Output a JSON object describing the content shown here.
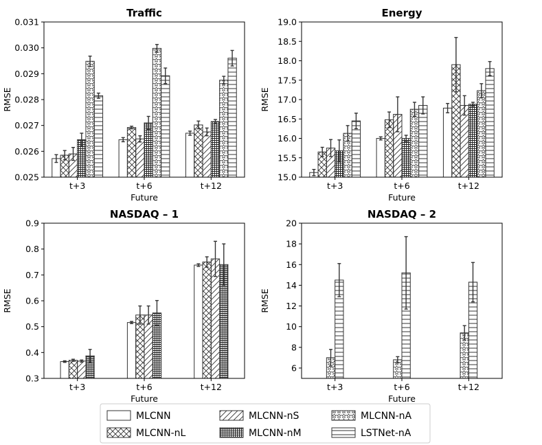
{
  "legend": {
    "entries": [
      "MLCNN",
      "MLCNN-nL",
      "MLCNN-nS",
      "MLCNN-nM",
      "MLCNN-nA",
      "LSTNet-nA"
    ]
  },
  "chart_data": [
    {
      "type": "bar",
      "title": "Traffic",
      "xlabel": "Future",
      "ylabel": "RMSE",
      "categories": [
        "t+3",
        "t+6",
        "t+12"
      ],
      "ylim": [
        0.025,
        0.031
      ],
      "yticks": [
        "0.025",
        "0.026",
        "0.027",
        "0.028",
        "0.029",
        "0.030",
        "0.031"
      ],
      "series": [
        {
          "name": "MLCNN",
          "values": [
            0.02572,
            0.02645,
            0.0267
          ],
          "errors": [
            0.00015,
            8e-05,
            8e-05
          ]
        },
        {
          "name": "MLCNN-nL",
          "values": [
            0.02585,
            0.02692,
            0.02702
          ],
          "errors": [
            0.00018,
            5e-05,
            0.00015
          ]
        },
        {
          "name": "MLCNN-nS",
          "values": [
            0.0259,
            0.02648,
            0.02675
          ],
          "errors": [
            0.00025,
            0.00012,
            0.00015
          ]
        },
        {
          "name": "MLCNN-nM",
          "values": [
            0.02645,
            0.0271,
            0.02715
          ],
          "errors": [
            0.00025,
            0.00025,
            8e-05
          ]
        },
        {
          "name": "MLCNN-nA",
          "values": [
            0.02948,
            0.02998,
            0.02875
          ],
          "errors": [
            0.0002,
            0.00015,
            0.00015
          ]
        },
        {
          "name": "LSTNet-nA",
          "values": [
            0.02815,
            0.02892,
            0.0296
          ],
          "errors": [
            0.0001,
            0.0003,
            0.0003
          ]
        }
      ]
    },
    {
      "type": "bar",
      "title": "Energy",
      "xlabel": "Future",
      "ylabel": "RMSE",
      "categories": [
        "t+3",
        "t+6",
        "t+12"
      ],
      "ylim": [
        15.0,
        19.0
      ],
      "yticks": [
        "15.0",
        "15.5",
        "16.0",
        "16.5",
        "17.0",
        "17.5",
        "18.0",
        "18.5",
        "19.0"
      ],
      "series": [
        {
          "name": "MLCNN",
          "values": [
            15.12,
            16.0,
            16.78
          ],
          "errors": [
            0.08,
            0.04,
            0.12
          ]
        },
        {
          "name": "MLCNN-nL",
          "values": [
            15.65,
            16.48,
            17.9
          ],
          "errors": [
            0.12,
            0.2,
            0.7
          ]
        },
        {
          "name": "MLCNN-nS",
          "values": [
            15.75,
            16.62,
            16.85
          ],
          "errors": [
            0.22,
            0.45,
            0.25
          ]
        },
        {
          "name": "MLCNN-nM",
          "values": [
            15.68,
            16.0,
            16.88
          ],
          "errors": [
            0.28,
            0.08,
            0.05
          ]
        },
        {
          "name": "MLCNN-nA",
          "values": [
            16.13,
            16.75,
            17.23
          ],
          "errors": [
            0.2,
            0.18,
            0.18
          ]
        },
        {
          "name": "LSTNet-nA",
          "values": [
            16.45,
            16.85,
            17.8
          ],
          "errors": [
            0.2,
            0.22,
            0.18
          ]
        }
      ]
    },
    {
      "type": "bar",
      "title": "NASDAQ – 1",
      "xlabel": "Future",
      "ylabel": "RMSE",
      "categories": [
        "t+3",
        "t+6",
        "t+12"
      ],
      "ylim": [
        0.3,
        0.9
      ],
      "yticks": [
        "0.3",
        "0.4",
        "0.5",
        "0.6",
        "0.7",
        "0.8",
        "0.9"
      ],
      "series": [
        {
          "name": "MLCNN",
          "values": [
            0.365,
            0.516,
            0.738
          ],
          "errors": [
            0.003,
            0.004,
            0.005
          ]
        },
        {
          "name": "MLCNN-nL",
          "values": [
            0.37,
            0.545,
            0.75
          ],
          "errors": [
            0.004,
            0.035,
            0.02
          ]
        },
        {
          "name": "MLCNN-nS",
          "values": [
            0.367,
            0.545,
            0.762
          ],
          "errors": [
            0.004,
            0.035,
            0.068
          ]
        },
        {
          "name": "MLCNN-nM",
          "values": [
            0.387,
            0.553,
            0.74
          ],
          "errors": [
            0.025,
            0.048,
            0.08
          ]
        }
      ]
    },
    {
      "type": "bar",
      "title": "NASDAQ – 2",
      "xlabel": "Future",
      "ylabel": "RMSE",
      "categories": [
        "t+3",
        "t+6",
        "t+12"
      ],
      "ylim": [
        5,
        20
      ],
      "yticks": [
        "6",
        "8",
        "10",
        "12",
        "14",
        "16",
        "18",
        "20"
      ],
      "series": [
        {
          "name": "MLCNN-nA",
          "values": [
            7.0,
            6.8,
            9.4
          ],
          "errors": [
            0.8,
            0.3,
            0.7
          ]
        },
        {
          "name": "LSTNet-nA",
          "values": [
            14.5,
            15.2,
            14.3
          ],
          "errors": [
            1.6,
            3.5,
            1.9
          ]
        }
      ]
    }
  ]
}
